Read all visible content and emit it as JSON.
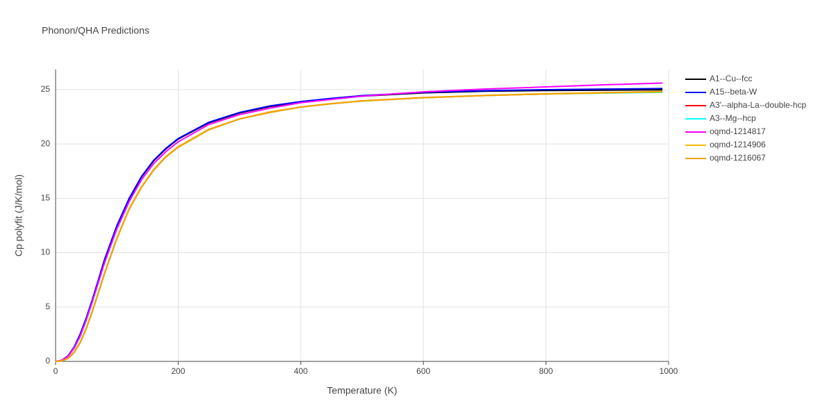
{
  "chart_data": {
    "type": "line",
    "title": "Phonon/QHA Predictions",
    "x_label": "Temperature (K)",
    "y_label": "Cp polyfit (J/K/mol)",
    "xlim": [
      0,
      1000
    ],
    "ylim": [
      0,
      26.85
    ],
    "xticks": [
      0,
      200,
      400,
      600,
      800,
      1000
    ],
    "yticks": [
      0,
      5,
      10,
      15,
      20,
      25
    ],
    "grid": true,
    "legend": "right",
    "x": [
      0,
      10,
      20,
      30,
      40,
      50,
      60,
      80,
      100,
      120,
      140,
      160,
      180,
      200,
      250,
      300,
      350,
      400,
      450,
      500,
      550,
      600,
      700,
      800,
      900,
      990
    ],
    "series": [
      {
        "name": "A1--Cu--fcc",
        "color": "#000000",
        "values": [
          0,
          0.08,
          0.45,
          1.25,
          2.45,
          3.95,
          5.65,
          9.35,
          12.45,
          14.95,
          16.95,
          18.45,
          19.55,
          20.45,
          21.95,
          22.85,
          23.45,
          23.85,
          24.15,
          24.4,
          24.55,
          24.7,
          24.85,
          24.92,
          24.95,
          24.98
        ]
      },
      {
        "name": "A15--beta-W",
        "color": "#0000ff",
        "values": [
          0,
          0.1,
          0.5,
          1.3,
          2.5,
          4.0,
          5.7,
          9.4,
          12.5,
          15.0,
          17.0,
          18.5,
          19.6,
          20.5,
          22.0,
          22.9,
          23.5,
          23.9,
          24.2,
          24.45,
          24.6,
          24.75,
          24.9,
          25.0,
          25.05,
          25.1
        ]
      },
      {
        "name": "A3'--alpha-La--double-hcp",
        "color": "#ff0000",
        "values": [
          0,
          0.05,
          0.25,
          0.8,
          1.7,
          3.0,
          4.6,
          8.1,
          11.3,
          14.0,
          16.0,
          17.6,
          18.8,
          19.7,
          21.3,
          22.3,
          22.9,
          23.4,
          23.7,
          23.95,
          24.1,
          24.25,
          24.45,
          24.6,
          24.7,
          24.8
        ]
      },
      {
        "name": "A3--Mg--hcp",
        "color": "#00ffff",
        "values": [
          0,
          0.05,
          0.25,
          0.8,
          1.7,
          3.0,
          4.6,
          8.1,
          11.3,
          14.0,
          16.0,
          17.6,
          18.8,
          19.7,
          21.3,
          22.3,
          22.9,
          23.4,
          23.7,
          23.95,
          24.1,
          24.25,
          24.45,
          24.6,
          24.68,
          24.75
        ]
      },
      {
        "name": "oqmd-1214817",
        "color": "#ff00ff",
        "values": [
          0,
          0.1,
          0.45,
          1.2,
          2.3,
          3.8,
          5.5,
          9.1,
          12.2,
          14.7,
          16.7,
          18.2,
          19.3,
          20.2,
          21.8,
          22.7,
          23.3,
          23.8,
          24.1,
          24.4,
          24.6,
          24.8,
          25.05,
          25.25,
          25.45,
          25.6
        ]
      },
      {
        "name": "oqmd-1214906",
        "color": "#f5b800",
        "values": [
          0,
          0.05,
          0.25,
          0.8,
          1.7,
          3.0,
          4.6,
          8.1,
          11.3,
          14.0,
          16.0,
          17.6,
          18.8,
          19.7,
          21.3,
          22.3,
          22.9,
          23.4,
          23.7,
          23.95,
          24.1,
          24.25,
          24.45,
          24.6,
          24.7,
          24.8
        ]
      },
      {
        "name": "oqmd-1216067",
        "color": "#f5a000",
        "values": [
          0,
          0.05,
          0.28,
          0.85,
          1.75,
          3.05,
          4.65,
          8.15,
          11.35,
          14.05,
          16.05,
          17.65,
          18.85,
          19.75,
          21.35,
          22.3,
          22.95,
          23.4,
          23.72,
          23.97,
          24.12,
          24.27,
          24.47,
          24.62,
          24.73,
          24.83
        ]
      }
    ]
  }
}
